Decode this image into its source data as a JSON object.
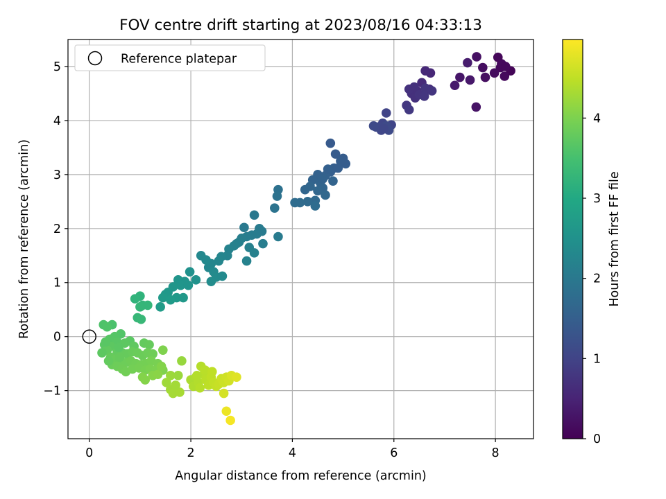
{
  "chart_data": {
    "type": "scatter",
    "title": "FOV centre drift starting at 2023/08/16 04:33:13",
    "xlabel": "Angular distance from reference (arcmin)",
    "ylabel": "Rotation from reference (arcmin)",
    "xlim": [
      -0.42,
      8.75
    ],
    "ylim": [
      -1.89,
      5.5
    ],
    "xticks": [
      0,
      2,
      4,
      6,
      8
    ],
    "yticks": [
      -1,
      0,
      1,
      2,
      3,
      4,
      5
    ],
    "xtick_labels": [
      "0",
      "2",
      "4",
      "6",
      "8"
    ],
    "ytick_labels": [
      "−1",
      "0",
      "1",
      "2",
      "3",
      "4",
      "5"
    ],
    "grid": true,
    "legend": {
      "placement": "top-left",
      "entries": [
        "Reference platepar"
      ]
    },
    "reference_point": {
      "x": 0,
      "y": 0,
      "label": "Reference platepar"
    },
    "colorbar": {
      "label": "Hours from first FF file",
      "range": [
        0,
        4.98
      ],
      "ticks": [
        0,
        1,
        2,
        3,
        4
      ],
      "tick_labels": [
        "0",
        "1",
        "2",
        "3",
        "4"
      ],
      "colormap": "viridis",
      "colors": [
        "#440154",
        "#482475",
        "#414487",
        "#355f8d",
        "#2a788e",
        "#21918c",
        "#22a884",
        "#44bf70",
        "#7ad151",
        "#bddf26",
        "#fde725"
      ]
    },
    "series": [
      {
        "points": [
          [
            8.3,
            4.92,
            0.05
          ],
          [
            8.05,
            5.17,
            0.08
          ],
          [
            8.1,
            4.98,
            0.1
          ],
          [
            8.18,
            4.82,
            0.12
          ],
          [
            7.98,
            4.88,
            0.15
          ],
          [
            7.75,
            4.98,
            0.18
          ],
          [
            7.8,
            4.8,
            0.2
          ],
          [
            7.63,
            5.18,
            0.22
          ],
          [
            7.62,
            4.25,
            0.25
          ],
          [
            7.3,
            4.8,
            0.3
          ],
          [
            7.5,
            4.75,
            0.33
          ],
          [
            7.2,
            4.65,
            0.36
          ],
          [
            7.45,
            5.07,
            0.38
          ],
          [
            8.12,
            5.05,
            0.12
          ],
          [
            8.2,
            5.0,
            0.1
          ],
          [
            6.72,
            4.88,
            0.55
          ],
          [
            6.62,
            4.92,
            0.58
          ],
          [
            6.55,
            4.7,
            0.6
          ],
          [
            6.7,
            4.58,
            0.62
          ],
          [
            6.45,
            4.55,
            0.65
          ],
          [
            6.35,
            4.5,
            0.68
          ],
          [
            6.42,
            4.42,
            0.7
          ],
          [
            6.3,
            4.58,
            0.72
          ],
          [
            6.5,
            4.48,
            0.74
          ],
          [
            6.62,
            4.6,
            0.76
          ],
          [
            6.25,
            4.28,
            0.8
          ],
          [
            6.3,
            4.2,
            0.82
          ],
          [
            6.6,
            4.45,
            0.78
          ],
          [
            6.75,
            4.55,
            0.77
          ],
          [
            6.4,
            4.62,
            0.7
          ],
          [
            5.85,
            4.14,
            1.0
          ],
          [
            5.95,
            3.92,
            1.02
          ],
          [
            5.78,
            3.95,
            1.04
          ],
          [
            5.75,
            3.82,
            1.05
          ],
          [
            5.7,
            3.88,
            1.07
          ],
          [
            5.65,
            3.88,
            1.08
          ],
          [
            5.6,
            3.9,
            1.1
          ],
          [
            5.85,
            3.9,
            1.12
          ],
          [
            5.9,
            3.82,
            1.1
          ],
          [
            5.8,
            3.85,
            1.06
          ],
          [
            4.75,
            3.58,
            1.4
          ],
          [
            4.85,
            3.38,
            1.42
          ],
          [
            5.0,
            3.3,
            1.44
          ],
          [
            5.05,
            3.2,
            1.46
          ],
          [
            4.95,
            3.25,
            1.45
          ],
          [
            4.82,
            3.12,
            1.48
          ],
          [
            4.75,
            3.05,
            1.5
          ],
          [
            4.5,
            3.0,
            1.55
          ],
          [
            4.65,
            2.98,
            1.56
          ],
          [
            4.4,
            2.9,
            1.58
          ],
          [
            4.55,
            2.85,
            1.6
          ],
          [
            4.6,
            2.75,
            1.62
          ],
          [
            4.35,
            2.78,
            1.63
          ],
          [
            4.25,
            2.72,
            1.64
          ],
          [
            4.5,
            2.7,
            1.65
          ],
          [
            4.8,
            2.88,
            1.6
          ],
          [
            4.65,
            2.62,
            1.67
          ],
          [
            4.45,
            2.52,
            1.7
          ],
          [
            4.3,
            2.5,
            1.72
          ],
          [
            4.15,
            2.48,
            1.74
          ],
          [
            4.05,
            2.48,
            1.75
          ],
          [
            4.45,
            2.42,
            1.76
          ],
          [
            3.72,
            2.72,
            1.85
          ],
          [
            3.7,
            2.6,
            1.87
          ],
          [
            3.65,
            2.38,
            1.9
          ],
          [
            4.7,
            3.1,
            1.52
          ],
          [
            4.9,
            3.12,
            1.47
          ],
          [
            4.6,
            2.92,
            1.57
          ],
          [
            3.25,
            2.25,
            2.0
          ],
          [
            3.05,
            2.02,
            2.02
          ],
          [
            3.35,
            2.0,
            2.05
          ],
          [
            3.3,
            1.9,
            2.07
          ],
          [
            3.4,
            1.95,
            2.06
          ],
          [
            3.2,
            1.88,
            2.08
          ],
          [
            3.1,
            1.85,
            2.1
          ],
          [
            3.0,
            1.82,
            2.12
          ],
          [
            2.95,
            1.75,
            2.14
          ],
          [
            2.9,
            1.72,
            2.16
          ],
          [
            3.42,
            1.72,
            2.1
          ],
          [
            3.72,
            1.85,
            2.05
          ],
          [
            3.15,
            1.65,
            2.15
          ],
          [
            2.85,
            1.68,
            2.18
          ],
          [
            2.75,
            1.62,
            2.2
          ],
          [
            2.72,
            1.5,
            2.22
          ],
          [
            3.25,
            1.55,
            2.18
          ],
          [
            3.1,
            1.4,
            2.2
          ],
          [
            2.6,
            1.48,
            2.25
          ],
          [
            2.55,
            1.4,
            2.27
          ],
          [
            2.4,
            1.35,
            2.28
          ],
          [
            2.35,
            1.28,
            2.3
          ],
          [
            2.2,
            1.5,
            2.32
          ],
          [
            2.3,
            1.42,
            2.33
          ],
          [
            2.45,
            1.2,
            2.35
          ],
          [
            2.5,
            1.1,
            2.37
          ],
          [
            2.62,
            1.12,
            2.36
          ],
          [
            2.4,
            1.02,
            2.4
          ],
          [
            1.98,
            1.2,
            2.5
          ],
          [
            2.1,
            1.05,
            2.52
          ],
          [
            1.88,
            1.02,
            2.55
          ],
          [
            1.75,
            1.05,
            2.57
          ],
          [
            1.8,
            0.95,
            2.58
          ],
          [
            1.65,
            0.92,
            2.6
          ],
          [
            1.55,
            0.82,
            2.62
          ],
          [
            1.5,
            0.78,
            2.64
          ],
          [
            1.95,
            0.95,
            2.56
          ],
          [
            1.72,
            0.72,
            2.66
          ],
          [
            1.85,
            0.72,
            2.65
          ],
          [
            1.45,
            0.72,
            2.68
          ],
          [
            1.6,
            0.68,
            2.7
          ],
          [
            1.4,
            0.55,
            2.72
          ],
          [
            1.0,
            0.75,
            3.2
          ],
          [
            0.9,
            0.7,
            3.22
          ],
          [
            1.05,
            0.58,
            3.25
          ],
          [
            1.15,
            0.58,
            3.27
          ],
          [
            1.0,
            0.55,
            3.28
          ],
          [
            0.95,
            0.35,
            3.3
          ],
          [
            1.02,
            0.32,
            3.32
          ],
          [
            0.45,
            0.22,
            3.55
          ],
          [
            0.28,
            0.22,
            3.58
          ],
          [
            0.35,
            0.18,
            3.6
          ],
          [
            0.62,
            0.05,
            3.62
          ],
          [
            0.5,
            0.0,
            3.64
          ],
          [
            0.4,
            -0.05,
            3.66
          ],
          [
            0.55,
            -0.1,
            3.68
          ],
          [
            0.3,
            -0.15,
            3.7
          ],
          [
            0.42,
            -0.18,
            3.72
          ],
          [
            0.8,
            -0.08,
            3.7
          ],
          [
            0.7,
            -0.12,
            3.72
          ],
          [
            0.88,
            -0.18,
            3.74
          ],
          [
            1.08,
            -0.12,
            3.78
          ],
          [
            1.18,
            -0.15,
            3.8
          ],
          [
            0.35,
            -0.25,
            3.75
          ],
          [
            0.55,
            -0.28,
            3.76
          ],
          [
            0.65,
            -0.3,
            3.78
          ],
          [
            0.75,
            -0.32,
            3.8
          ],
          [
            0.85,
            -0.28,
            3.82
          ],
          [
            0.95,
            -0.3,
            3.84
          ],
          [
            1.05,
            -0.35,
            3.85
          ],
          [
            1.15,
            -0.3,
            3.86
          ],
          [
            1.25,
            -0.32,
            3.88
          ],
          [
            0.42,
            -0.38,
            3.8
          ],
          [
            0.5,
            -0.42,
            3.82
          ],
          [
            0.62,
            -0.45,
            3.84
          ],
          [
            0.72,
            -0.48,
            3.86
          ],
          [
            0.82,
            -0.45,
            3.88
          ],
          [
            0.92,
            -0.5,
            3.9
          ],
          [
            1.02,
            -0.52,
            3.92
          ],
          [
            1.12,
            -0.5,
            3.93
          ],
          [
            1.22,
            -0.45,
            3.95
          ],
          [
            1.35,
            -0.5,
            3.97
          ],
          [
            0.45,
            -0.52,
            3.84
          ],
          [
            0.55,
            -0.55,
            3.86
          ],
          [
            0.65,
            -0.6,
            3.88
          ],
          [
            0.72,
            -0.65,
            3.9
          ],
          [
            0.85,
            -0.6,
            3.92
          ],
          [
            0.98,
            -0.58,
            3.94
          ],
          [
            1.1,
            -0.62,
            3.96
          ],
          [
            1.2,
            -0.6,
            3.98
          ],
          [
            1.32,
            -0.62,
            4.0
          ],
          [
            1.45,
            -0.62,
            4.02
          ],
          [
            1.05,
            -0.75,
            4.05
          ],
          [
            1.1,
            -0.8,
            4.06
          ],
          [
            1.25,
            -0.72,
            4.08
          ],
          [
            1.35,
            -0.7,
            4.1
          ],
          [
            1.45,
            -0.25,
            4.02
          ],
          [
            1.42,
            -0.55,
            4.05
          ],
          [
            0.58,
            -0.2,
            3.7
          ],
          [
            0.25,
            -0.3,
            3.72
          ],
          [
            0.38,
            -0.45,
            3.78
          ],
          [
            0.32,
            -0.1,
            3.68
          ],
          [
            0.6,
            -0.38,
            3.8
          ],
          [
            1.82,
            -0.45,
            4.2
          ],
          [
            1.75,
            -0.72,
            4.22
          ],
          [
            1.6,
            -0.72,
            4.24
          ],
          [
            1.52,
            -0.85,
            4.26
          ],
          [
            1.6,
            -0.98,
            4.28
          ],
          [
            1.65,
            -1.05,
            4.3
          ],
          [
            1.78,
            -1.03,
            4.32
          ],
          [
            1.7,
            -0.9,
            4.29
          ],
          [
            2.0,
            -0.8,
            4.35
          ],
          [
            2.1,
            -0.75,
            4.37
          ],
          [
            2.05,
            -0.92,
            4.38
          ],
          [
            2.15,
            -0.85,
            4.4
          ],
          [
            2.2,
            -0.55,
            4.42
          ],
          [
            2.25,
            -0.7,
            4.44
          ],
          [
            2.3,
            -0.8,
            4.46
          ],
          [
            2.35,
            -0.9,
            4.48
          ],
          [
            2.4,
            -0.75,
            4.5
          ],
          [
            2.45,
            -0.85,
            4.52
          ],
          [
            2.5,
            -0.92,
            4.54
          ],
          [
            2.55,
            -0.88,
            4.56
          ],
          [
            2.6,
            -0.78,
            4.58
          ],
          [
            2.65,
            -0.85,
            4.6
          ],
          [
            2.7,
            -0.75,
            4.62
          ],
          [
            2.75,
            -0.82,
            4.64
          ],
          [
            2.65,
            -1.05,
            4.66
          ],
          [
            2.8,
            -0.72,
            4.7
          ],
          [
            2.9,
            -0.75,
            4.75
          ],
          [
            2.7,
            -1.38,
            4.85
          ],
          [
            2.78,
            -1.55,
            4.92
          ],
          [
            2.12,
            -0.72,
            4.41
          ],
          [
            2.28,
            -0.62,
            4.45
          ],
          [
            2.18,
            -0.95,
            4.43
          ],
          [
            2.42,
            -0.65,
            4.5
          ]
        ]
      }
    ]
  }
}
